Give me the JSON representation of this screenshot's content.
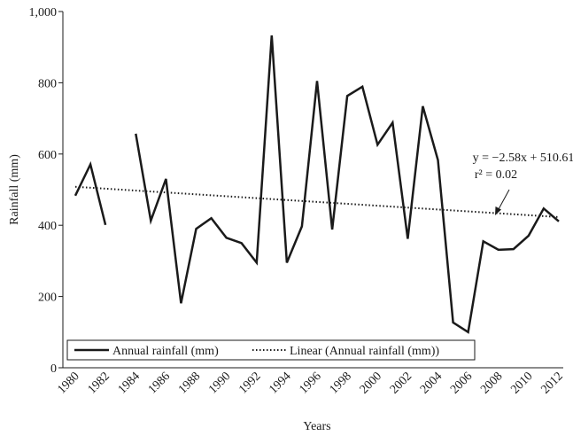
{
  "chart_data": {
    "type": "line",
    "xlabel": "Years",
    "ylabel": "Rainfall (mm)",
    "ylim": [
      0,
      1000
    ],
    "xlim": [
      1980,
      2012
    ],
    "y_ticks": [
      "0",
      "200",
      "400",
      "600",
      "800",
      "1,000"
    ],
    "x_ticks": [
      "1980",
      "1982",
      "1984",
      "1986",
      "1988",
      "1990",
      "1992",
      "1994",
      "1996",
      "1998",
      "2000",
      "2002",
      "2004",
      "2006",
      "2008",
      "2010",
      "2012"
    ],
    "grid": false,
    "legend_position": "bottom-left",
    "series": [
      {
        "name": "Annual rainfall (mm)",
        "style": "solid",
        "color": "#1a1a1a",
        "x": [
          1980,
          1981,
          1982,
          1983,
          1984,
          1985,
          1986,
          1987,
          1988,
          1989,
          1990,
          1991,
          1992,
          1993,
          1994,
          1995,
          1996,
          1997,
          1998,
          1999,
          2000,
          2001,
          2002,
          2003,
          2004,
          2005,
          2006,
          2007,
          2008,
          2009,
          2010,
          2011,
          2012
        ],
        "values": [
          483,
          571,
          401,
          null,
          657,
          413,
          530,
          181,
          390,
          420,
          365,
          350,
          295,
          933,
          295,
          397,
          805,
          388,
          763,
          789,
          626,
          688,
          362,
          734,
          583,
          127,
          100,
          355,
          331,
          333,
          371,
          447,
          411
        ]
      },
      {
        "name": "Linear (Annual rainfall (mm))",
        "style": "dotted",
        "color": "#1a1a1a",
        "x": [
          1980,
          2012
        ],
        "values": [
          508,
          423
        ]
      }
    ],
    "annotations": {
      "equation": "y = −2.58x + 510.61",
      "r_squared": "r² = 0.02"
    }
  }
}
